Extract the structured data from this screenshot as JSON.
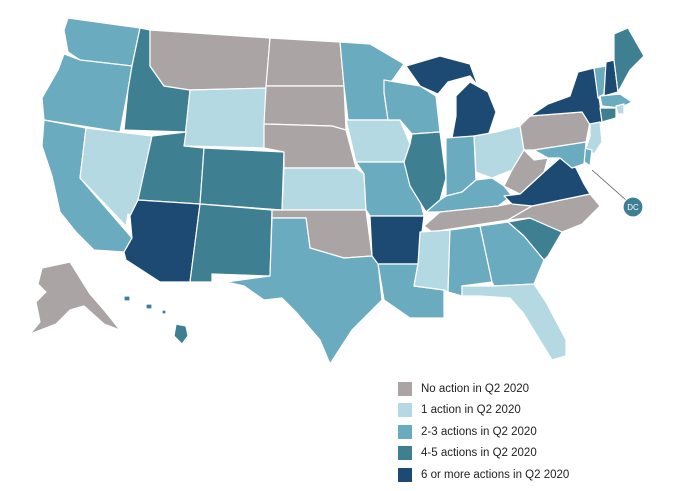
{
  "palette": {
    "no_action": "#aaa5a4",
    "one": "#b5d9e3",
    "two_three": "#6aabc0",
    "four_five": "#3e7f92",
    "six_plus": "#1c4a72"
  },
  "legend": [
    {
      "key": "no_action",
      "label": "No action in Q2 2020"
    },
    {
      "key": "one",
      "label": "1 action in Q2 2020"
    },
    {
      "key": "two_three",
      "label": "2-3 actions in Q2 2020"
    },
    {
      "key": "four_five",
      "label": "4-5 actions in Q2 2020"
    },
    {
      "key": "six_plus",
      "label": "6 or more actions in Q2 2020"
    }
  ],
  "dc_label": "DC",
  "states": {
    "WA": "two_three",
    "OR": "two_three",
    "CA": "two_three",
    "NV": "one",
    "ID": "four_five",
    "MT": "no_action",
    "WY": "one",
    "UT": "four_five",
    "AZ": "six_plus",
    "CO": "four_five",
    "NM": "four_five",
    "ND": "no_action",
    "SD": "no_action",
    "NE": "no_action",
    "KS": "one",
    "OK": "no_action",
    "TX": "two_three",
    "MN": "two_three",
    "IA": "one",
    "MO": "two_three",
    "AR": "six_plus",
    "LA": "two_three",
    "WI": "two_three",
    "IL": "four_five",
    "MI": "six_plus",
    "IN": "two_three",
    "OH": "one",
    "KY": "two_three",
    "TN": "no_action",
    "MS": "one",
    "AL": "two_three",
    "GA": "two_three",
    "FL": "one",
    "SC": "four_five",
    "NC": "no_action",
    "VA": "six_plus",
    "WV": "no_action",
    "PA": "no_action",
    "NY": "six_plus",
    "VT": "two_three",
    "NH": "six_plus",
    "ME": "four_five",
    "MA": "two_three",
    "RI": "one",
    "CT": "four_five",
    "NJ": "one",
    "DE": "two_three",
    "MD": "two_three",
    "AK": "no_action",
    "HI": "four_five",
    "DC": "four_five"
  }
}
